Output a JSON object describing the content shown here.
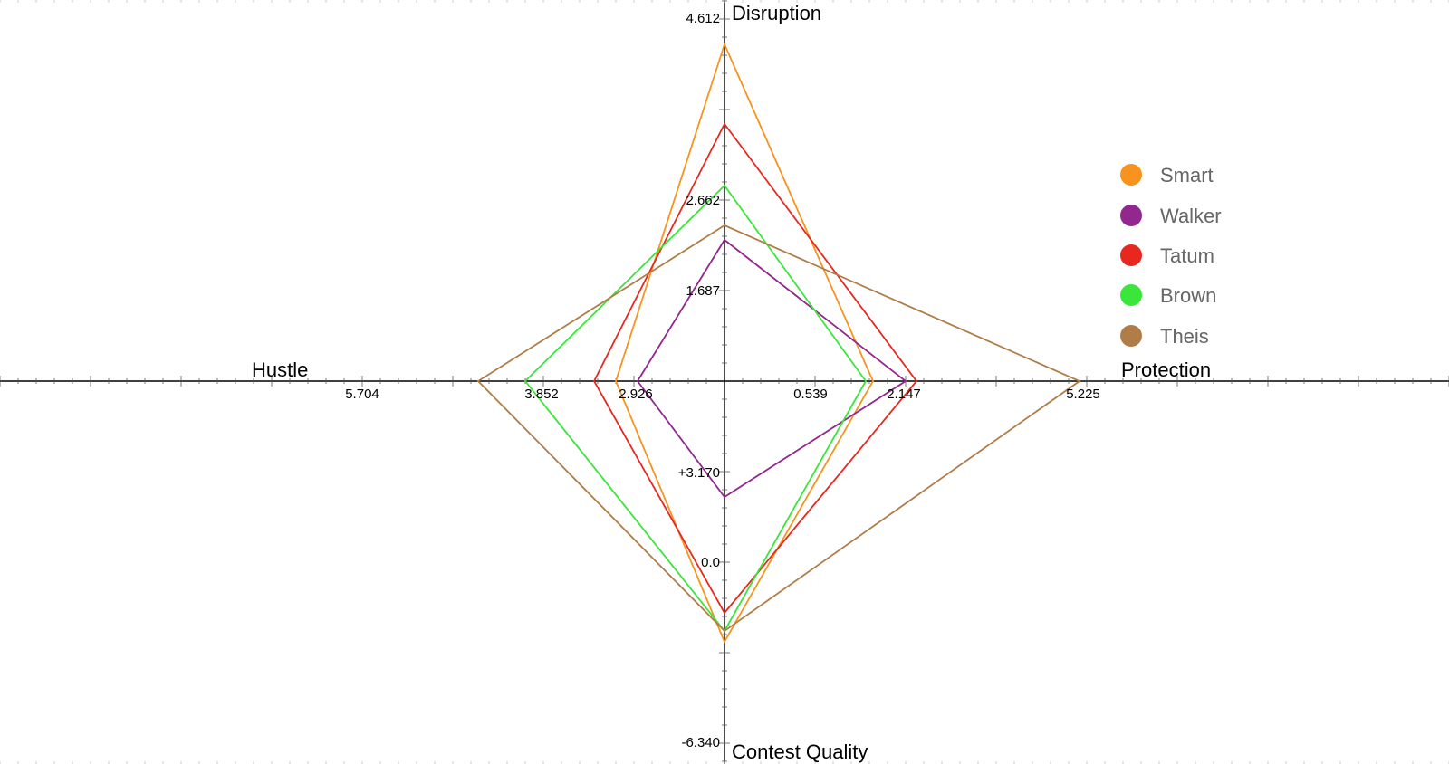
{
  "chart_data": {
    "type": "radar",
    "axes": [
      {
        "key": "disruption",
        "label": "Disruption",
        "tick_labels": [
          "4.612",
          "2.662",
          "1.687"
        ]
      },
      {
        "key": "protection",
        "label": "Protection",
        "tick_labels": [
          "0.539",
          "2.147",
          "5.225"
        ]
      },
      {
        "key": "contest_quality",
        "label": "Contest Quality",
        "tick_labels": [
          "+3.170",
          "0.0",
          "-6.340"
        ]
      },
      {
        "key": "hustle",
        "label": "Hustle",
        "tick_labels": [
          "5.704",
          "3.852",
          "2.926"
        ]
      }
    ],
    "series": [
      {
        "name": "Smart",
        "color": "#F7931E",
        "values": {
          "disruption": 0.93,
          "protection": 0.41,
          "contest_quality": 0.72,
          "hustle": 0.3
        }
      },
      {
        "name": "Walker",
        "color": "#92278F",
        "values": {
          "disruption": 0.39,
          "protection": 0.5,
          "contest_quality": 0.32,
          "hustle": 0.24
        }
      },
      {
        "name": "Tatum",
        "color": "#E8281E",
        "values": {
          "disruption": 0.71,
          "protection": 0.53,
          "contest_quality": 0.64,
          "hustle": 0.36
        }
      },
      {
        "name": "Brown",
        "color": "#39E639",
        "values": {
          "disruption": 0.54,
          "protection": 0.39,
          "contest_quality": 0.69,
          "hustle": 0.55
        }
      },
      {
        "name": "Theis",
        "color": "#B07D48",
        "values": {
          "disruption": 0.43,
          "protection": 0.98,
          "contest_quality": 0.69,
          "hustle": 0.68
        }
      }
    ],
    "legend_position": "right",
    "grid": false
  }
}
